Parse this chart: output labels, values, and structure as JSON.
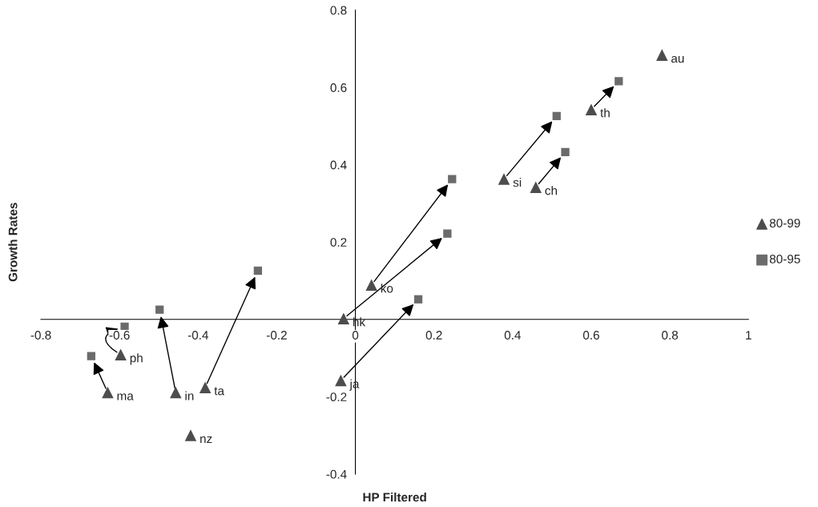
{
  "chart_data": {
    "type": "scatter",
    "xlabel": "HP Filtered",
    "ylabel": "Growth Rates",
    "series": [
      {
        "name": "80-99",
        "color": "#4d4d4d",
        "marker": "triangle",
        "x": [
          0.78,
          0.6,
          0.378,
          0.459,
          0.041,
          -0.03,
          -0.037,
          -0.597,
          -0.63,
          -0.457,
          -0.382,
          -0.419
        ],
        "values": [
          0.684,
          0.543,
          0.363,
          0.342,
          0.089,
          0.002,
          -0.158,
          -0.091,
          -0.189,
          -0.189,
          -0.176,
          -0.3
        ]
      },
      {
        "name": "80-95",
        "color": "#6b6b6b",
        "marker": "square",
        "x": [
          null,
          0.67,
          0.512,
          0.534,
          0.246,
          0.234,
          0.16,
          -0.587,
          -0.672,
          -0.498,
          -0.248,
          null
        ],
        "values": [
          null,
          0.616,
          0.526,
          0.433,
          0.363,
          0.222,
          0.052,
          -0.019,
          -0.095,
          0.025,
          0.126,
          null
        ]
      }
    ],
    "annotations": [
      {
        "text": "au",
        "x": 0.78,
        "y": 0.684
      },
      {
        "text": "th",
        "x": 0.6,
        "y": 0.543
      },
      {
        "text": "si",
        "x": 0.378,
        "y": 0.363
      },
      {
        "text": "ch",
        "x": 0.459,
        "y": 0.342
      },
      {
        "text": "ko",
        "x": 0.041,
        "y": 0.089
      },
      {
        "text": "hk",
        "x": -0.03,
        "y": 0.002
      },
      {
        "text": "ja",
        "x": -0.037,
        "y": -0.158
      },
      {
        "text": "ph",
        "x": -0.597,
        "y": -0.091
      },
      {
        "text": "ma",
        "x": -0.63,
        "y": -0.189
      },
      {
        "text": "in",
        "x": -0.457,
        "y": -0.189
      },
      {
        "text": "ta",
        "x": -0.382,
        "y": -0.176
      },
      {
        "text": "nz",
        "x": -0.419,
        "y": -0.3
      }
    ],
    "xlim": [
      -0.8,
      1
    ],
    "xticks": [
      -0.8,
      -0.6,
      -0.4,
      -0.2,
      0,
      0.2,
      0.4,
      0.6,
      0.8,
      1
    ],
    "ylim": [
      -0.4,
      0.8
    ],
    "yticks": [
      -0.4,
      -0.2,
      0.2,
      0.4,
      0.6,
      0.8
    ],
    "grid": false,
    "legend": "right"
  }
}
